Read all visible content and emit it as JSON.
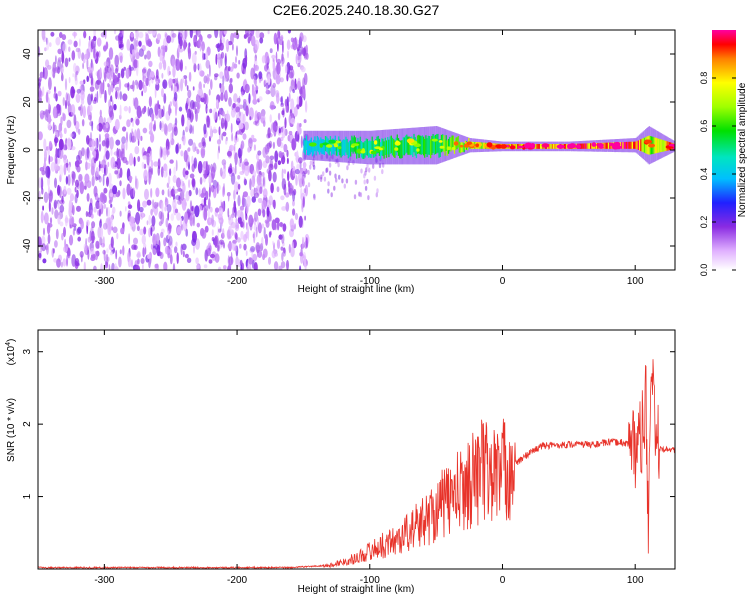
{
  "title": "C2E6.2025.240.18.30.G27",
  "chart_data": [
    {
      "type": "heatmap",
      "xlabel": "Height of straight line (km)",
      "ylabel": "Frequency (Hz)",
      "xlim": [
        -350,
        130
      ],
      "ylim": [
        -50,
        50
      ],
      "x_ticks": [
        -300,
        -200,
        -100,
        0,
        100
      ],
      "y_ticks": [
        -40,
        -20,
        0,
        20,
        40
      ],
      "noise_region_x": [
        -350,
        -150
      ],
      "signal_band": {
        "x": [
          -150,
          -100,
          -50,
          -25,
          0,
          50,
          100,
          110,
          130
        ],
        "center_hz": [
          2,
          1,
          2,
          2,
          1.5,
          1.5,
          2,
          2,
          1.5
        ],
        "width_hz": [
          6,
          7,
          8,
          3,
          2,
          2,
          3,
          8,
          2
        ],
        "amplitude": [
          0.45,
          0.55,
          0.6,
          0.7,
          0.85,
          0.9,
          0.95,
          0.7,
          0.9
        ]
      },
      "colorbar": {
        "label": "Normalized spectral amplitude",
        "range": [
          0,
          1
        ],
        "ticks": [
          "0.0",
          "0.2",
          "0.4",
          "0.6",
          "0.8"
        ]
      }
    },
    {
      "type": "line",
      "xlabel": "Height of straight line (km)",
      "ylabel": "SNR (10 * v/v)",
      "y_scale_note": "(x10",
      "y_scale_exp": "4",
      "xlim": [
        -350,
        130
      ],
      "ylim": [
        0,
        3.3
      ],
      "x_ticks": [
        -300,
        -200,
        -100,
        0,
        100
      ],
      "y_ticks": [
        1,
        2,
        3
      ],
      "color": "#e8332a",
      "series": [
        {
          "x": [
            -350,
            -250,
            -160,
            -130,
            -110,
            -100,
            -80,
            -60,
            -45,
            -30,
            -20,
            -15,
            -10,
            0,
            10,
            20,
            30,
            50,
            70,
            80,
            90,
            100,
            105,
            108,
            110,
            112,
            115,
            120,
            130
          ],
          "y": [
            0.02,
            0.02,
            0.02,
            0.05,
            0.15,
            0.25,
            0.4,
            0.65,
            0.9,
            1.1,
            1.3,
            1.4,
            1.3,
            1.35,
            1.45,
            1.6,
            1.7,
            1.72,
            1.72,
            1.75,
            1.75,
            1.7,
            1.8,
            2.4,
            0.3,
            3.0,
            1.7,
            1.65,
            1.65
          ]
        }
      ]
    }
  ]
}
